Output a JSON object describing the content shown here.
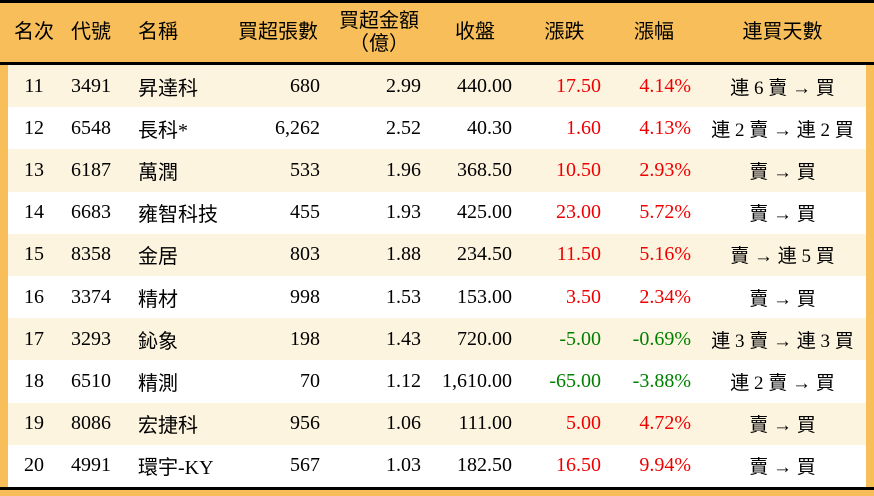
{
  "chart_data": {
    "type": "table",
    "columns": [
      {
        "key": "rank",
        "label": "名次"
      },
      {
        "key": "code",
        "label": "代號"
      },
      {
        "key": "name",
        "label": "名稱"
      },
      {
        "key": "volume",
        "label": "買超張數"
      },
      {
        "key": "amount",
        "label": "買超金額",
        "label2": "（億）"
      },
      {
        "key": "close",
        "label": "收盤"
      },
      {
        "key": "change",
        "label": "漲跌"
      },
      {
        "key": "pct",
        "label": "漲幅"
      },
      {
        "key": "streak",
        "label": "連買天數"
      }
    ],
    "rows": [
      {
        "rank": "11",
        "code": "3491",
        "name": "昇達科",
        "volume": "680",
        "amount": "2.99",
        "close": "440.00",
        "change": "17.50",
        "pct": "4.14%",
        "streak": "連 6 賣 → 買",
        "trend": "up"
      },
      {
        "rank": "12",
        "code": "6548",
        "name": "長科*",
        "volume": "6,262",
        "amount": "2.52",
        "close": "40.30",
        "change": "1.60",
        "pct": "4.13%",
        "streak": "連 2 賣 → 連 2 買",
        "trend": "up"
      },
      {
        "rank": "13",
        "code": "6187",
        "name": "萬潤",
        "volume": "533",
        "amount": "1.96",
        "close": "368.50",
        "change": "10.50",
        "pct": "2.93%",
        "streak": "賣 → 買",
        "trend": "up"
      },
      {
        "rank": "14",
        "code": "6683",
        "name": "雍智科技",
        "volume": "455",
        "amount": "1.93",
        "close": "425.00",
        "change": "23.00",
        "pct": "5.72%",
        "streak": "賣 → 買",
        "trend": "up"
      },
      {
        "rank": "15",
        "code": "8358",
        "name": "金居",
        "volume": "803",
        "amount": "1.88",
        "close": "234.50",
        "change": "11.50",
        "pct": "5.16%",
        "streak": "賣 → 連 5 買",
        "trend": "up"
      },
      {
        "rank": "16",
        "code": "3374",
        "name": "精材",
        "volume": "998",
        "amount": "1.53",
        "close": "153.00",
        "change": "3.50",
        "pct": "2.34%",
        "streak": "賣 → 買",
        "trend": "up"
      },
      {
        "rank": "17",
        "code": "3293",
        "name": "鈊象",
        "volume": "198",
        "amount": "1.43",
        "close": "720.00",
        "change": "-5.00",
        "pct": "-0.69%",
        "streak": "連 3 賣 → 連 3 買",
        "trend": "down"
      },
      {
        "rank": "18",
        "code": "6510",
        "name": "精測",
        "volume": "70",
        "amount": "1.12",
        "close": "1,610.00",
        "change": "-65.00",
        "pct": "-3.88%",
        "streak": "連 2 賣 → 買",
        "trend": "down"
      },
      {
        "rank": "19",
        "code": "8086",
        "name": "宏捷科",
        "volume": "956",
        "amount": "1.06",
        "close": "111.00",
        "change": "5.00",
        "pct": "4.72%",
        "streak": "賣 → 買",
        "trend": "up"
      },
      {
        "rank": "20",
        "code": "4991",
        "name": "環宇-KY",
        "volume": "567",
        "amount": "1.03",
        "close": "182.50",
        "change": "16.50",
        "pct": "9.94%",
        "streak": "賣 → 買",
        "trend": "up"
      }
    ]
  },
  "colors": {
    "header_bg": "#F7BE59",
    "stripe_bg": "#FCF4DF",
    "row_bg": "#FFFFFF",
    "rule": "#000000",
    "up": "#EE0000",
    "down": "#008000",
    "text": "#000000"
  }
}
